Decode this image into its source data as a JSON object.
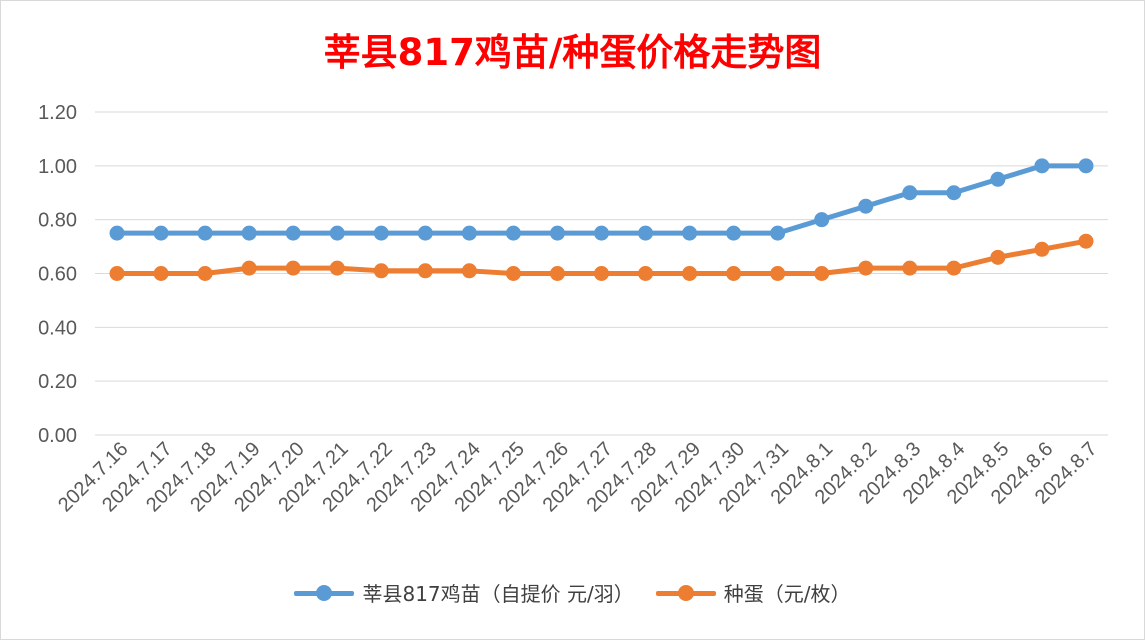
{
  "chart_data": {
    "type": "line",
    "title": "莘县817鸡苗/种蛋价格走势图",
    "categories": [
      "2024.7.16",
      "2024.7.17",
      "2024.7.18",
      "2024.7.19",
      "2024.7.20",
      "2024.7.21",
      "2024.7.22",
      "2024.7.23",
      "2024.7.24",
      "2024.7.25",
      "2024.7.26",
      "2024.7.27",
      "2024.7.28",
      "2024.7.29",
      "2024.7.30",
      "2024.7.31",
      "2024.8.1",
      "2024.8.2",
      "2024.8.3",
      "2024.8.4",
      "2024.8.5",
      "2024.8.6",
      "2024.8.7"
    ],
    "series": [
      {
        "name": "莘县817鸡苗（自提价 元/羽）",
        "color": "#5b9bd5",
        "values": [
          0.75,
          0.75,
          0.75,
          0.75,
          0.75,
          0.75,
          0.75,
          0.75,
          0.75,
          0.75,
          0.75,
          0.75,
          0.75,
          0.75,
          0.75,
          0.75,
          0.8,
          0.85,
          0.9,
          0.9,
          0.95,
          1.0,
          1.0
        ]
      },
      {
        "name": "种蛋（元/枚）",
        "color": "#ed7d31",
        "values": [
          0.6,
          0.6,
          0.6,
          0.62,
          0.62,
          0.62,
          0.61,
          0.61,
          0.61,
          0.6,
          0.6,
          0.6,
          0.6,
          0.6,
          0.6,
          0.6,
          0.6,
          0.62,
          0.62,
          0.62,
          0.66,
          0.69,
          0.72
        ]
      }
    ],
    "ylim": [
      0,
      1.2
    ],
    "yticks": [
      "0.00",
      "0.20",
      "0.40",
      "0.60",
      "0.80",
      "1.00",
      "1.20"
    ],
    "grid": true,
    "legend": "bottom"
  }
}
